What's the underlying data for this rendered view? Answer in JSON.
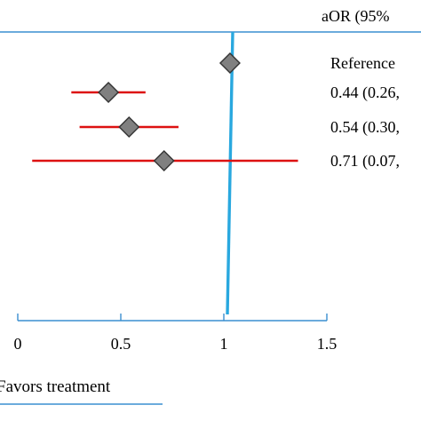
{
  "chart_data": {
    "type": "forest",
    "column_header": "aOR (95%",
    "estimate_labels": [
      "Reference",
      "0.44 (0.26,",
      "0.54 (0.30,",
      "0.71 (0.07,"
    ],
    "rows": [
      {
        "label": "Reference",
        "or": 1.03,
        "ci": null
      },
      {
        "label": "0.44 (0.26,",
        "or": 0.44,
        "ci": [
          0.26,
          0.62
        ]
      },
      {
        "label": "0.54 (0.30,",
        "or": 0.54,
        "ci": [
          0.3,
          0.78
        ]
      },
      {
        "label": "0.71 (0.07,",
        "or": 0.71,
        "ci": [
          0.07,
          1.36
        ]
      }
    ],
    "x_ticks": [
      "0",
      "0.5",
      "1",
      "1.5"
    ],
    "xlim": [
      0,
      1.5
    ],
    "reference_line": 1,
    "favors_label": "Favors treatment",
    "colors": {
      "ci_line": "#dd1111",
      "reference_line": "#29a8df",
      "marker_fill": "#808080",
      "marker_stroke": "#333333",
      "axis": "#3a8fd0"
    }
  }
}
